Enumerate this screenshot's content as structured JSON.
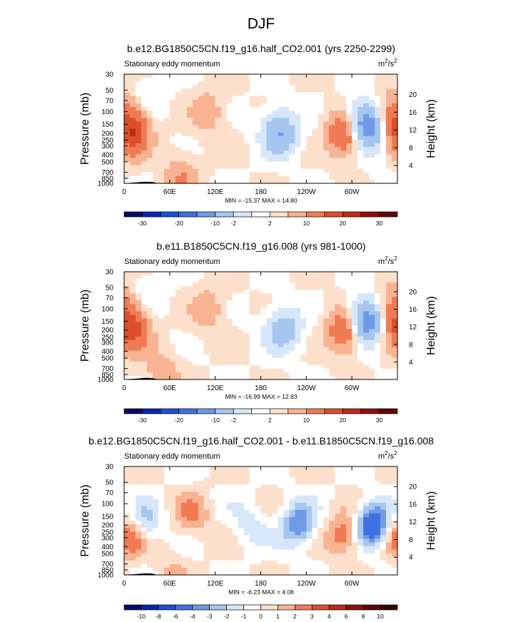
{
  "page_title": "DJF",
  "chart_data": [
    {
      "type": "heatmap",
      "title": "b.e12.BG1850C5CN.f19_g16.half_CO2.001 (yrs 2250-2299)",
      "subtitle": "Stationary eddy momentum",
      "units": "m²/s²",
      "units_base": "m",
      "units_sup": "2",
      "units_slash": "/s",
      "ylabel": "Pressure (mb)",
      "ylabel_right": "Height (km)",
      "xticks": [
        "0",
        "60E",
        "120E",
        "180",
        "120W",
        "60W"
      ],
      "yticks": [
        "30",
        "50",
        "70",
        "100",
        "150",
        "200",
        "250",
        "300",
        "400",
        "500",
        "700",
        "850",
        "1000"
      ],
      "height_ticks": [
        "20",
        "16",
        "12",
        "8",
        "4"
      ],
      "stats": "MIN = -15.37  MAX = 14.80",
      "colorbar_labels": [
        "-30",
        "-20",
        "-10",
        "-2",
        "2",
        "10",
        "20",
        "30"
      ],
      "features": [
        {
          "lon": 10,
          "lev": 200,
          "value": 14
        },
        {
          "lon": 110,
          "lev": 100,
          "value": 4
        },
        {
          "lon": 205,
          "lev": 200,
          "value": -10
        },
        {
          "lon": 292,
          "lev": 200,
          "value": 12
        },
        {
          "lon": 315,
          "lev": 150,
          "value": -15
        },
        {
          "lon": 355,
          "lev": 100,
          "value": 6
        },
        {
          "lon": 30,
          "lev": 60,
          "value": -2
        },
        {
          "lon": 75,
          "lev": 850,
          "value": 5
        },
        {
          "lon": 330,
          "lev": 250,
          "value": -3
        }
      ]
    },
    {
      "type": "heatmap",
      "title": "b.e11.B1850C5CN.f19_g16.008 (yrs 981-1000)",
      "subtitle": "Stationary eddy momentum",
      "units": "m²/s²",
      "units_base": "m",
      "units_sup": "2",
      "units_slash": "/s",
      "ylabel": "Pressure (mb)",
      "ylabel_right": "Height (km)",
      "xticks": [
        "0",
        "60E",
        "120E",
        "180",
        "120W",
        "60W"
      ],
      "yticks": [
        "30",
        "50",
        "70",
        "100",
        "150",
        "200",
        "250",
        "300",
        "400",
        "500",
        "700",
        "850",
        "1000"
      ],
      "height_ticks": [
        "20",
        "16",
        "12",
        "8",
        "4"
      ],
      "stats": "MIN = -16.99  MAX = 12.83",
      "colorbar_labels": [
        "-30",
        "-20",
        "-10",
        "-2",
        "2",
        "10",
        "20",
        "30"
      ],
      "features": [
        {
          "lon": 10,
          "lev": 200,
          "value": 12
        },
        {
          "lon": 110,
          "lev": 100,
          "value": 4
        },
        {
          "lon": 210,
          "lev": 200,
          "value": -8
        },
        {
          "lon": 292,
          "lev": 200,
          "value": 11
        },
        {
          "lon": 318,
          "lev": 150,
          "value": -16
        },
        {
          "lon": 355,
          "lev": 100,
          "value": 7
        },
        {
          "lon": 30,
          "lev": 60,
          "value": -2
        },
        {
          "lon": 50,
          "lev": 850,
          "value": 4
        }
      ]
    },
    {
      "type": "heatmap",
      "title": "b.e12.BG1850C5CN.f19_g16.half_CO2.001 - b.e11.B1850C5CN.f19_g16.008",
      "subtitle": "Stationary eddy momentum",
      "units": "m²/s²",
      "units_base": "m",
      "units_sup": "2",
      "units_slash": "/s",
      "ylabel": "Pressure (mb)",
      "ylabel_right": "Height (km)",
      "xticks": [
        "0",
        "60E",
        "120E",
        "180",
        "120W",
        "60W"
      ],
      "yticks": [
        "30",
        "50",
        "70",
        "100",
        "150",
        "200",
        "250",
        "300",
        "400",
        "500",
        "700",
        "850",
        "1000"
      ],
      "height_ticks": [
        "20",
        "16",
        "12",
        "8",
        "4"
      ],
      "stats": "MIN =  -6.23  MAX =   4.08",
      "colorbar_labels": [
        "-10",
        "-8",
        "-6",
        "-4",
        "-3",
        "-2",
        "-1",
        "0",
        "1",
        "2",
        "3",
        "4",
        "6",
        "8",
        "10"
      ],
      "features": [
        {
          "lon": 8,
          "lev": 280,
          "value": 4
        },
        {
          "lon": 25,
          "lev": 200,
          "value": -3
        },
        {
          "lon": 90,
          "lev": 150,
          "value": 2
        },
        {
          "lon": 165,
          "lev": 200,
          "value": -1.5
        },
        {
          "lon": 230,
          "lev": 200,
          "value": -4
        },
        {
          "lon": 290,
          "lev": 280,
          "value": 3
        },
        {
          "lon": 328,
          "lev": 200,
          "value": -6
        },
        {
          "lon": 60,
          "lev": 850,
          "value": 1
        }
      ]
    }
  ],
  "colormaps": {
    "absolute": [
      "#0a0a66",
      "#0b24b3",
      "#1d4fd6",
      "#3f72e0",
      "#6f9ae8",
      "#a6c6f0",
      "#d7e7fa",
      "#ffffff",
      "#fde0cc",
      "#f8b393",
      "#ef7b55",
      "#dc4f2c",
      "#c0281b",
      "#8e0f0f",
      "#5e0707"
    ],
    "difference": [
      "#0a0a66",
      "#0b24b3",
      "#1d4fd6",
      "#3f72e0",
      "#6f9ae8",
      "#a6c6f0",
      "#d7e7fa",
      "#ffffff",
      "#fde0cc",
      "#f8b393",
      "#ef7b55",
      "#dc4f2c",
      "#c0281b",
      "#8e0f0f",
      "#5e0707",
      "#3a0303"
    ]
  }
}
